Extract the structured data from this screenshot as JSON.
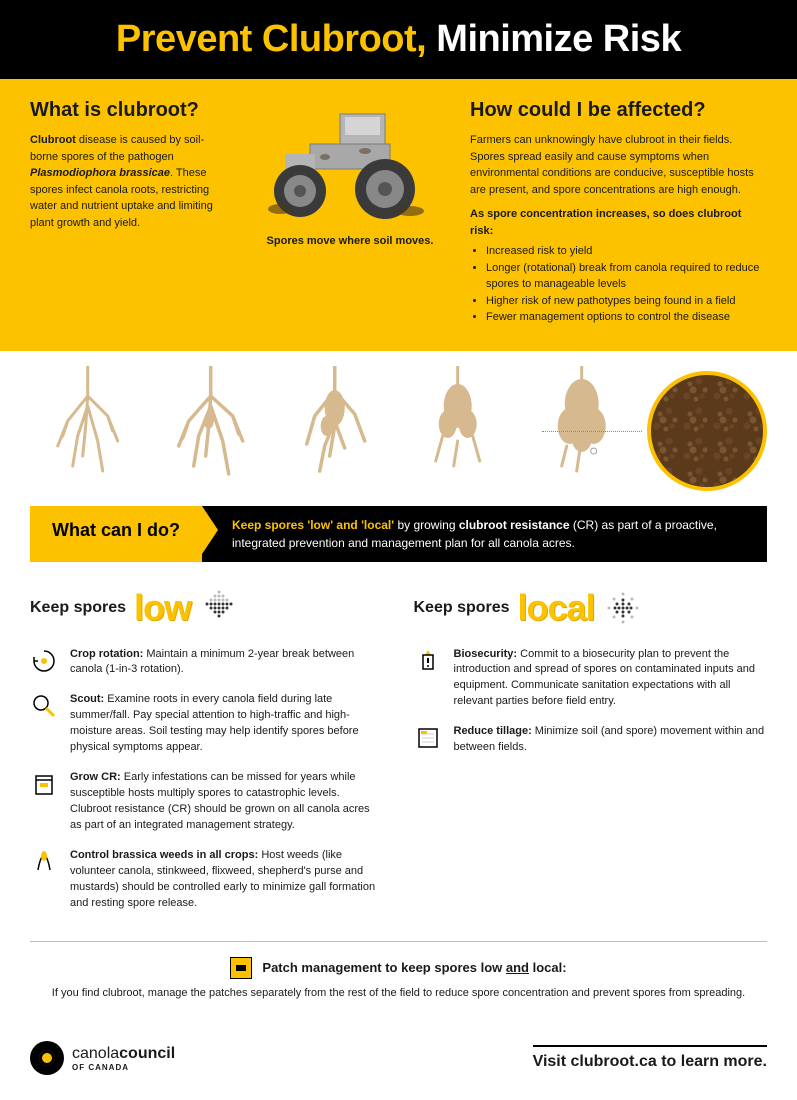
{
  "colors": {
    "brand_yellow": "#fcc200",
    "black": "#000000",
    "white": "#ffffff",
    "root": "#d6b98f",
    "root_dark": "#b89665",
    "spore": "#5a3a1a",
    "tractor_body": "#b5b5b5",
    "tractor_dark": "#7a7a7a"
  },
  "header": {
    "prevent": "Prevent Clubroot,",
    "minimize": " Minimize Risk"
  },
  "what_is": {
    "title": "What is clubroot?",
    "body": "<b>Clubroot</b> disease is caused by soil-borne spores of the pathogen <b><i>Plasmodiophora brassicae</i></b>. These spores infect canola roots, restricting water and nutrient uptake and limiting plant growth and yield."
  },
  "tagline": "Spores move where soil moves.",
  "affected": {
    "title": "How could I be affected?",
    "body": "Farmers can unknowingly have clubroot in their fields. Spores spread easily and cause symptoms when environmental conditions are conducive, susceptible hosts are present, and spore concentrations are high enough.",
    "sub": "As spore concentration increases, so does clubroot risk:",
    "bullets": [
      "Increased risk to yield",
      "Longer (rotational) break from canola required to reduce spores to manageable levels",
      "Higher risk of new pathotypes being found in a field",
      "Fewer management options to control the disease"
    ]
  },
  "action": {
    "tab": "What can I do?",
    "body": "<b class='ylw'>Keep spores 'low' and 'local'</b> by growing <b>clubroot resistance</b> (CR) as part of a proactive, integrated prevention and management plan for all canola acres."
  },
  "low": {
    "label": "Keep spores",
    "big": "low",
    "tips": [
      {
        "icon": "rotation-icon",
        "text": "<b>Crop rotation:</b> Maintain a minimum 2-year break between canola (1-in-3 rotation)."
      },
      {
        "icon": "scout-icon",
        "text": "<b>Scout:</b> Examine roots in every canola field during late summer/fall. Pay special attention to high-traffic and high-moisture areas. Soil testing may help identify spores before physical symptoms appear."
      },
      {
        "icon": "grow-cr-icon",
        "text": "<b>Grow CR:</b> Early infestations can be missed for years while susceptible hosts multiply spores to catastrophic levels. Clubroot resistance (CR) should be grown on all canola acres as part of an integrated management strategy."
      },
      {
        "icon": "weeds-icon",
        "text": "<b>Control brassica weeds in all crops:</b> Host weeds (like volunteer canola, stinkweed, flixweed, shepherd's purse and mustards) should be controlled early to minimize gall formation and resting spore release."
      }
    ]
  },
  "local": {
    "label": "Keep spores",
    "big": "local",
    "tips": [
      {
        "icon": "biosecurity-icon",
        "text": "<b>Biosecurity:</b> Commit to a biosecurity plan to prevent the introduction and spread of spores on contaminated inputs and equipment. Communicate sanitation expectations with all relevant parties before field entry."
      },
      {
        "icon": "tillage-icon",
        "text": "<b>Reduce tillage:</b> Minimize soil (and spore) movement within and between fields."
      }
    ]
  },
  "patch": {
    "head": "Patch management to keep spores low <span class='underline'>and</span> local:",
    "body": "If you find clubroot, manage the patches separately from the rest of the field to reduce spore concentration and prevent spores from spreading."
  },
  "footer": {
    "logo_main": "canola",
    "logo_bold": "council",
    "logo_sub": "OF CANADA",
    "visit_pre": "Visit ",
    "visit_link": "clubroot.ca",
    "visit_post": " to learn more."
  }
}
